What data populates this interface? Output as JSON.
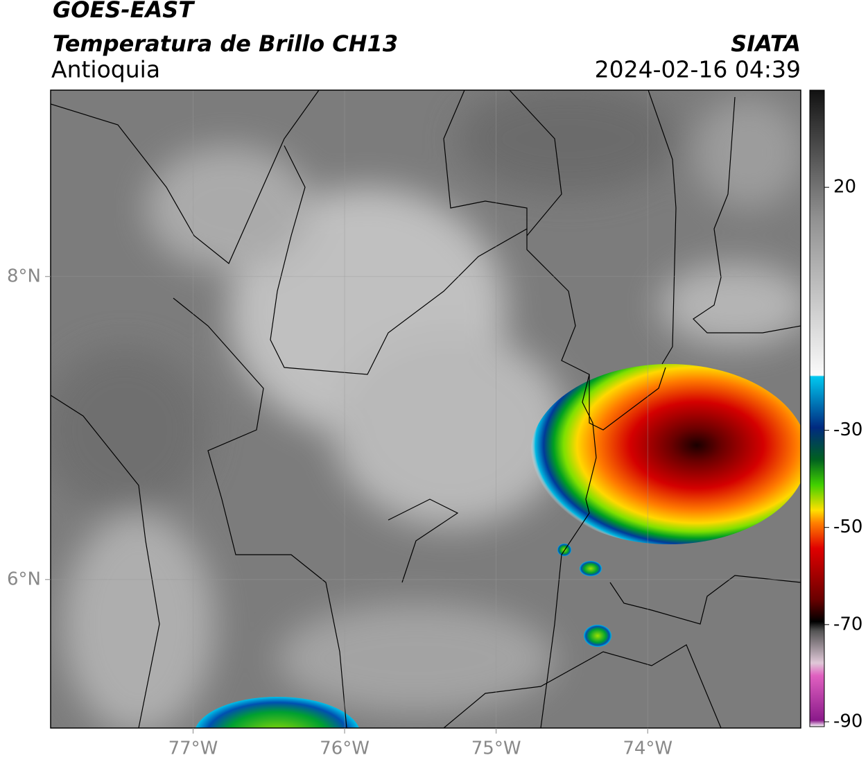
{
  "header": {
    "title": "GOES-EAST",
    "subtitle": "Temperatura de Brillo CH13",
    "region": "Antioquia",
    "source": "SIATA",
    "datetime": "2024-02-16 04:39"
  },
  "map": {
    "lonlim": [
      -77.94,
      -72.99
    ],
    "latlim": [
      5.02,
      9.23
    ],
    "lonticks": [
      {
        "value": -77,
        "label": "77°W"
      },
      {
        "value": -76,
        "label": "76°W"
      },
      {
        "value": -75,
        "label": "75°W"
      },
      {
        "value": -74,
        "label": "74°W"
      }
    ],
    "latticks": [
      {
        "value": 8,
        "label": "8°N"
      },
      {
        "value": 6,
        "label": "6°N"
      }
    ]
  },
  "colorbar": {
    "lim": [
      -91,
      40
    ],
    "ticks": [
      20,
      -30,
      -50,
      -70,
      -90
    ]
  }
}
